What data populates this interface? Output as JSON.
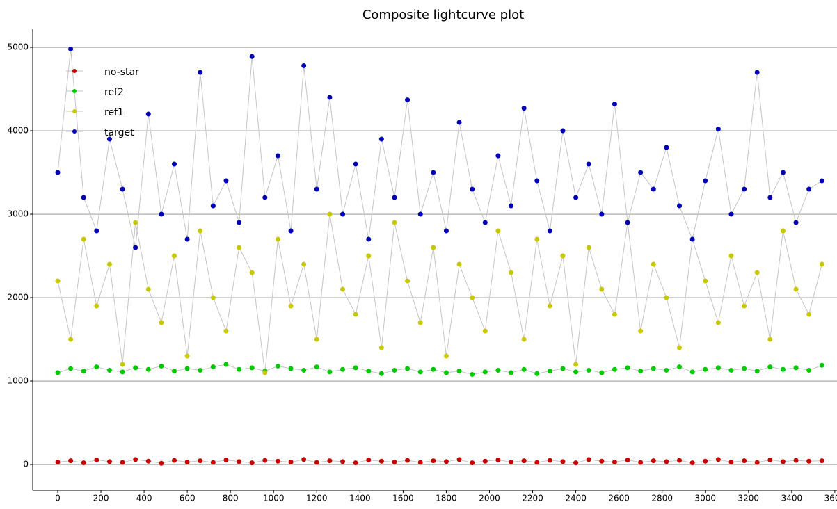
{
  "chart_data": {
    "type": "line",
    "title": "Composite lightcurve plot",
    "x": [
      0,
      60,
      120,
      180,
      240,
      300,
      360,
      420,
      480,
      540,
      600,
      660,
      720,
      780,
      840,
      900,
      960,
      1020,
      1080,
      1140,
      1200,
      1260,
      1320,
      1380,
      1440,
      1500,
      1560,
      1620,
      1680,
      1740,
      1800,
      1860,
      1920,
      1980,
      2040,
      2100,
      2160,
      2220,
      2280,
      2340,
      2400,
      2460,
      2520,
      2580,
      2640,
      2700,
      2760,
      2820,
      2880,
      2940,
      3000,
      3060,
      3120,
      3180,
      3240,
      3300,
      3360,
      3420,
      3480,
      3540
    ],
    "series": [
      {
        "name": "no-star",
        "color": "#c80000",
        "values": [
          30,
          45,
          20,
          55,
          35,
          25,
          60,
          40,
          15,
          50,
          30,
          45,
          25,
          55,
          35,
          20,
          50,
          40,
          30,
          60,
          25,
          45,
          35,
          20,
          55,
          40,
          30,
          50,
          25,
          45,
          35,
          60,
          20,
          40,
          55,
          30,
          45,
          25,
          50,
          35,
          20,
          60,
          40,
          30,
          55,
          25,
          45,
          35,
          50,
          20,
          40,
          60,
          30,
          45,
          25,
          55,
          35,
          50,
          40,
          45
        ]
      },
      {
        "name": "ref2",
        "color": "#00c800",
        "values": [
          1100,
          1150,
          1120,
          1170,
          1130,
          1110,
          1160,
          1140,
          1180,
          1120,
          1150,
          1130,
          1170,
          1200,
          1140,
          1160,
          1120,
          1180,
          1150,
          1130,
          1170,
          1110,
          1140,
          1160,
          1120,
          1090,
          1130,
          1150,
          1110,
          1140,
          1100,
          1120,
          1080,
          1110,
          1130,
          1100,
          1140,
          1090,
          1120,
          1150,
          1110,
          1130,
          1100,
          1140,
          1160,
          1120,
          1150,
          1130,
          1170,
          1110,
          1140,
          1160,
          1130,
          1150,
          1120,
          1170,
          1140,
          1160,
          1130,
          1190
        ]
      },
      {
        "name": "ref1",
        "color": "#c8c800",
        "values": [
          2200,
          1500,
          2700,
          1900,
          2400,
          1200,
          2900,
          2100,
          1700,
          2500,
          1300,
          2800,
          2000,
          1600,
          2600,
          2300,
          1100,
          2700,
          1900,
          2400,
          1500,
          3000,
          2100,
          1800,
          2500,
          1400,
          2900,
          2200,
          1700,
          2600,
          1300,
          2400,
          2000,
          1600,
          2800,
          2300,
          1500,
          2700,
          1900,
          2500,
          1200,
          2600,
          2100,
          1800,
          2900,
          1600,
          2400,
          2000,
          1400,
          2700,
          2200,
          1700,
          2500,
          1900,
          2300,
          1500,
          2800,
          2100,
          1800,
          2400
        ]
      },
      {
        "name": "target",
        "color": "#0000b4",
        "values": [
          3500,
          4980,
          3200,
          2800,
          3900,
          3300,
          2600,
          4200,
          3000,
          3600,
          2700,
          4700,
          3100,
          3400,
          2900,
          4890,
          3200,
          3700,
          2800,
          4780,
          3300,
          4400,
          3000,
          3600,
          2700,
          3900,
          3200,
          4370,
          3000,
          3500,
          2800,
          4100,
          3300,
          2900,
          3700,
          3100,
          4270,
          3400,
          2800,
          4000,
          3200,
          3600,
          3000,
          4320,
          2900,
          3500,
          3300,
          3800,
          3100,
          2700,
          3400,
          4020,
          3000,
          3300,
          4700,
          3200,
          3500,
          2900,
          3300,
          3400
        ]
      }
    ],
    "line_color": "#c4c4c4",
    "xlim": [
      -116,
      3610
    ],
    "xticks": [
      0,
      200,
      400,
      600,
      800,
      1000,
      1200,
      1400,
      1600,
      1800,
      2000,
      2200,
      2400,
      2600,
      2800,
      3000,
      3200,
      3400,
      3600
    ],
    "ylim": [
      -308,
      5217
    ],
    "yticks": [
      0,
      1000,
      2000,
      3000,
      4000,
      5000
    ],
    "grid": true,
    "legend": "upper left"
  }
}
